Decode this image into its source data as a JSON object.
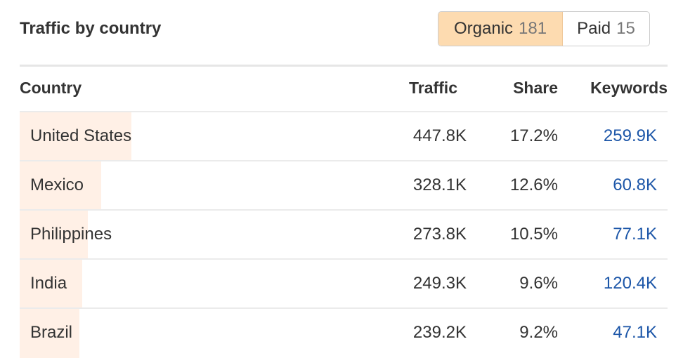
{
  "title": "Traffic by country",
  "toggle": {
    "organic": {
      "label": "Organic",
      "count": "181"
    },
    "paid": {
      "label": "Paid",
      "count": "15"
    },
    "selected": "organic"
  },
  "columns": {
    "country": "Country",
    "traffic": "Traffic",
    "share": "Share",
    "keywords": "Keywords"
  },
  "colors": {
    "bar": "#fff0e6",
    "active_tab": "#fddbb0",
    "link": "#1c56a8"
  },
  "rows": [
    {
      "country": "United States",
      "traffic": "447.8K",
      "share": "17.2%",
      "share_value": 17.2,
      "keywords": "259.9K"
    },
    {
      "country": "Mexico",
      "traffic": "328.1K",
      "share": "12.6%",
      "share_value": 12.6,
      "keywords": "60.8K"
    },
    {
      "country": "Philippines",
      "traffic": "273.8K",
      "share": "10.5%",
      "share_value": 10.5,
      "keywords": "77.1K"
    },
    {
      "country": "India",
      "traffic": "249.3K",
      "share": "9.6%",
      "share_value": 9.6,
      "keywords": "120.4K"
    },
    {
      "country": "Brazil",
      "traffic": "239.2K",
      "share": "9.2%",
      "share_value": 9.2,
      "keywords": "47.1K"
    }
  ]
}
